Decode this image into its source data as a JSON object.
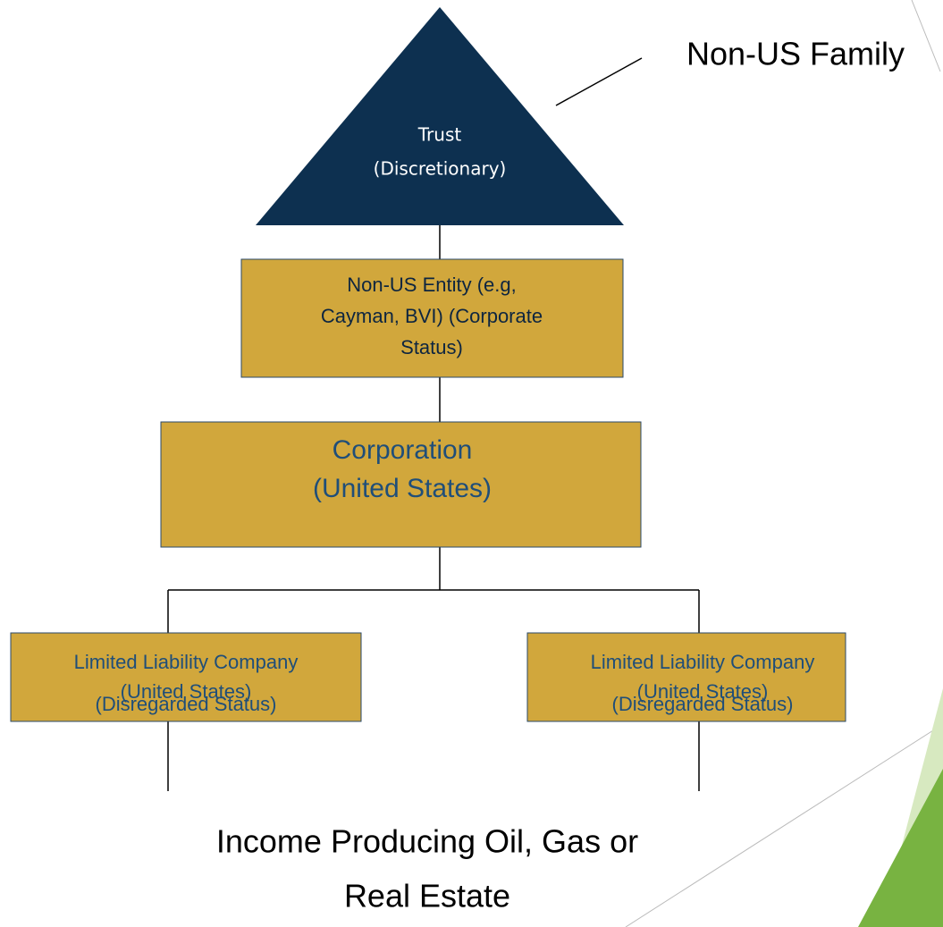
{
  "family_label": "Non-US Family",
  "trust": {
    "lines": [
      "Trust",
      "(Discretionary)"
    ]
  },
  "non_us_entity": {
    "lines": [
      "Non-US Entity (e.g,",
      "Cayman, BVI) (Corporate",
      "Status)"
    ]
  },
  "corporation": {
    "lines": [
      "Corporation",
      "(United States)"
    ]
  },
  "llcs": [
    {
      "lines": [
        "Limited Liability Company",
        "(United States)",
        "(Disregarded Status)"
      ]
    },
    {
      "lines": [
        "Limited Liability Company",
        "(United States)",
        "(Disregarded Status)"
      ]
    }
  ],
  "bottom": {
    "lines": [
      "Income Producing Oil, Gas or",
      "Real Estate"
    ]
  }
}
